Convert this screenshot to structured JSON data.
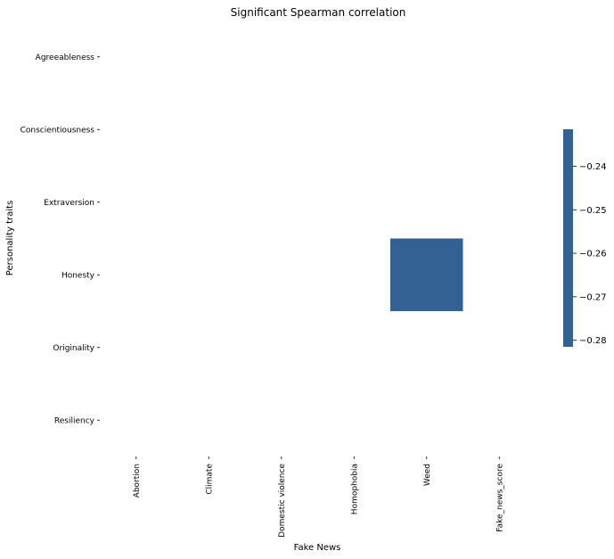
{
  "chart_data": {
    "type": "heatmap",
    "title": "Significant Spearman correlation",
    "xlabel": "Fake News",
    "ylabel": "Personality traits",
    "x_categories": [
      "Abortion",
      "Climate",
      "Domestic violence",
      "Homophobia",
      "Weed",
      "Fake_news_score"
    ],
    "y_categories": [
      "Agreeableness",
      "Conscientiousness",
      "Extraversion",
      "Honesty",
      "Originality",
      "Resiliency"
    ],
    "cells": [
      {
        "x": "Weed",
        "y": "Honesty",
        "value": -0.26
      }
    ],
    "colorbar": {
      "range": [
        -0.2815,
        -0.2315
      ],
      "ticks": [
        -0.24,
        -0.25,
        -0.26,
        -0.27,
        -0.28
      ],
      "tick_labels": [
        "−0.24",
        "−0.25",
        "−0.26",
        "−0.27",
        "−0.28"
      ],
      "color": "#336194"
    },
    "grid": false,
    "legend": "colorbar-right"
  }
}
